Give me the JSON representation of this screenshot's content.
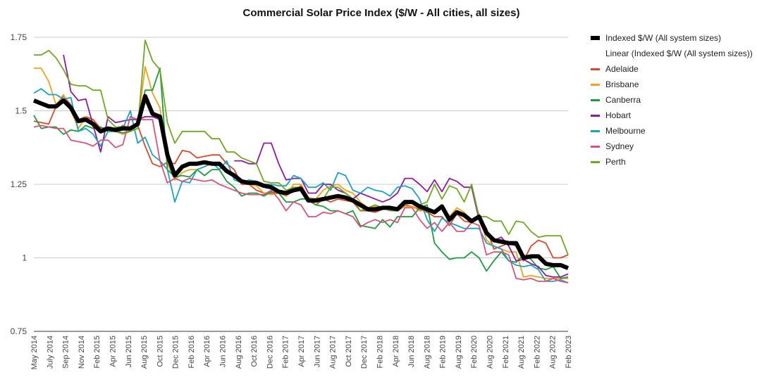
{
  "chart_data": {
    "type": "line",
    "title": "Commercial Solar Price Index ($/W - All cities, all sizes)",
    "xlabel": "",
    "ylabel": "",
    "ylim": [
      0.75,
      1.75
    ],
    "yticks": [
      "0.75",
      "1",
      "1.25",
      "1.5",
      "1.75"
    ],
    "yticks_values": [
      0.75,
      1.0,
      1.25,
      1.5,
      1.75
    ],
    "grid": true,
    "legend_position": "right",
    "x_tick_labels": [
      "May 2014",
      "July 2014",
      "Sep 2014",
      "Nov 2014",
      "Feb 2015",
      "Apr 2015",
      "Jun 2015",
      "Aug 2015",
      "Oct 2015",
      "Dec 2015",
      "Feb 2016",
      "Apr 2016",
      "Jun 2016",
      "Aug 2016",
      "Oct 2016",
      "Dec 2016",
      "Feb 2017",
      "Apr 2017",
      "Jun 2017",
      "Aug 2017",
      "Oct 2017",
      "Dec 2017",
      "Feb 2018",
      "Apr 2018",
      "Jun 2018",
      "Aug 2018",
      "Feb 2019",
      "Aug 2019",
      "Feb 2020",
      "Aug 2020",
      "Feb 2021",
      "Aug 2021",
      "Feb 2022",
      "Aug 2022",
      "Feb 2023"
    ],
    "trendline_label": "Linear (Indexed $/W (All system sizes))",
    "series": [
      {
        "name": "Indexed $/W (All system sizes)",
        "color": "#000000",
        "values": [
          1.535,
          1.525,
          1.515,
          1.515,
          1.535,
          1.51,
          1.465,
          1.47,
          1.455,
          1.43,
          1.44,
          1.435,
          1.44,
          1.44,
          1.455,
          1.55,
          1.49,
          1.48,
          1.35,
          1.28,
          1.31,
          1.32,
          1.32,
          1.325,
          1.32,
          1.32,
          1.295,
          1.28,
          1.26,
          1.255,
          1.255,
          1.245,
          1.24,
          1.225,
          1.22,
          1.23,
          1.235,
          1.195,
          1.195,
          1.2,
          1.205,
          1.21,
          1.205,
          1.195,
          1.18,
          1.165,
          1.165,
          1.17,
          1.17,
          1.165,
          1.19,
          1.19,
          1.175,
          1.165,
          1.155,
          1.175,
          1.13,
          1.155,
          1.145,
          1.125,
          1.14,
          1.085,
          1.06,
          1.055,
          1.05,
          1.05,
          1.0,
          1.005,
          1.005,
          0.98,
          0.975,
          0.975,
          0.965
        ]
      },
      {
        "name": "Adelaide",
        "color": "#d9482b",
        "values": [
          1.465,
          1.46,
          1.455,
          1.515,
          1.55,
          1.52,
          1.47,
          1.48,
          1.47,
          1.44,
          1.445,
          1.435,
          1.45,
          1.44,
          1.45,
          1.38,
          1.32,
          1.31,
          1.325,
          1.32,
          1.365,
          1.36,
          1.34,
          1.345,
          1.35,
          1.35,
          1.32,
          1.3,
          1.25,
          1.25,
          1.23,
          1.22,
          1.22,
          1.22,
          1.21,
          1.23,
          1.245,
          1.195,
          1.18,
          1.2,
          1.19,
          1.2,
          1.195,
          1.19,
          1.16,
          1.16,
          1.155,
          1.165,
          1.175,
          1.16,
          1.18,
          1.175,
          1.165,
          1.155,
          1.14,
          1.14,
          1.11,
          1.15,
          1.125,
          1.12,
          1.14,
          1.1,
          1.03,
          1.04,
          1.05,
          1.04,
          0.99,
          1.04,
          1.06,
          1.05,
          1.0,
          1.0,
          1.01
        ]
      },
      {
        "name": "Brisbane",
        "color": "#f2a21b",
        "values": [
          1.645,
          1.645,
          1.6,
          1.52,
          1.555,
          1.5,
          1.44,
          1.48,
          1.445,
          1.44,
          1.44,
          1.43,
          1.42,
          1.43,
          1.45,
          1.65,
          1.56,
          1.51,
          1.32,
          1.265,
          1.29,
          1.3,
          1.3,
          1.31,
          1.32,
          1.32,
          1.3,
          1.28,
          1.255,
          1.25,
          1.245,
          1.22,
          1.215,
          1.22,
          1.21,
          1.25,
          1.25,
          1.205,
          1.2,
          1.23,
          1.245,
          1.25,
          1.23,
          1.22,
          1.19,
          1.17,
          1.175,
          1.17,
          1.165,
          1.16,
          1.175,
          1.175,
          1.16,
          1.16,
          1.15,
          1.18,
          1.14,
          1.17,
          1.155,
          1.12,
          1.15,
          1.06,
          1.04,
          1.03,
          1.02,
          1.02,
          0.935,
          0.94,
          0.935,
          0.93,
          0.93,
          0.93,
          0.93
        ]
      },
      {
        "name": "Canberra",
        "color": "#1d9b3d",
        "values": [
          1.485,
          1.44,
          1.445,
          1.445,
          1.42,
          1.435,
          1.43,
          1.45,
          1.44,
          1.445,
          1.43,
          1.43,
          1.425,
          1.43,
          1.44,
          1.57,
          1.57,
          1.645,
          1.3,
          1.275,
          1.28,
          1.275,
          1.3,
          1.28,
          1.3,
          1.3,
          1.26,
          1.24,
          1.21,
          1.22,
          1.22,
          1.21,
          1.225,
          1.22,
          1.19,
          1.19,
          1.2,
          1.2,
          1.18,
          1.175,
          1.16,
          1.16,
          1.15,
          1.16,
          1.11,
          1.105,
          1.1,
          1.13,
          1.105,
          1.14,
          1.14,
          1.14,
          1.17,
          1.18,
          1.05,
          1.02,
          0.995,
          1.0,
          1.0,
          1.02,
          1.0,
          0.955,
          0.99,
          1.02,
          0.99,
          0.985,
          1.01,
          0.995,
          0.965,
          0.96,
          0.97,
          0.93,
          0.935
        ]
      },
      {
        "name": "Hobart",
        "color": "#8e1a9e",
        "values": [
          null,
          null,
          null,
          null,
          1.69,
          1.565,
          1.535,
          1.54,
          1.45,
          1.36,
          1.48,
          1.46,
          1.465,
          1.47,
          1.47,
          1.48,
          1.48,
          1.47,
          1.375,
          null,
          null,
          null,
          null,
          null,
          null,
          null,
          null,
          1.33,
          1.33,
          1.32,
          1.32,
          1.39,
          1.39,
          1.32,
          1.265,
          1.27,
          1.27,
          1.22,
          1.22,
          1.25,
          1.25,
          1.23,
          1.22,
          1.2,
          1.22,
          1.21,
          1.2,
          1.19,
          1.2,
          1.22,
          1.27,
          1.27,
          1.25,
          1.225,
          1.265,
          1.225,
          1.27,
          1.26,
          1.24,
          1.24,
          1.13,
          1.09,
          1.06,
          1.07,
          1.04,
          0.99,
          0.995,
          0.98,
          0.97,
          0.94,
          0.935,
          0.935,
          0.945
        ]
      },
      {
        "name": "Melbourne",
        "color": "#1aa3c1",
        "values": [
          1.56,
          1.575,
          1.555,
          1.555,
          1.54,
          1.545,
          1.43,
          1.44,
          1.42,
          1.38,
          1.43,
          1.44,
          1.44,
          1.5,
          1.39,
          1.41,
          1.35,
          1.33,
          1.3,
          1.19,
          1.26,
          1.255,
          1.3,
          1.31,
          1.325,
          1.3,
          1.33,
          1.265,
          1.255,
          1.265,
          1.26,
          1.25,
          1.25,
          1.245,
          1.245,
          1.28,
          1.27,
          1.24,
          1.24,
          1.255,
          1.23,
          1.29,
          1.28,
          1.23,
          1.22,
          1.24,
          1.23,
          1.225,
          1.21,
          1.24,
          1.245,
          1.235,
          1.2,
          1.13,
          1.09,
          1.135,
          1.12,
          1.11,
          1.1,
          1.1,
          1.1,
          1.05,
          1.04,
          1.03,
          0.99,
          0.975,
          0.97,
          0.975,
          0.96,
          0.92,
          0.92,
          0.925,
          0.915
        ]
      },
      {
        "name": "Sydney",
        "color": "#d9527a",
        "values": [
          1.445,
          1.45,
          1.445,
          1.44,
          1.44,
          1.4,
          1.395,
          1.39,
          1.38,
          1.4,
          1.4,
          1.375,
          1.385,
          1.48,
          1.47,
          1.47,
          1.47,
          1.33,
          1.255,
          1.27,
          1.26,
          1.27,
          1.265,
          1.26,
          1.265,
          1.25,
          1.24,
          1.23,
          1.22,
          1.215,
          1.215,
          1.215,
          1.23,
          1.2,
          1.16,
          1.19,
          1.18,
          1.14,
          1.14,
          1.155,
          1.15,
          1.16,
          1.15,
          1.14,
          1.105,
          1.12,
          1.13,
          1.12,
          1.13,
          1.12,
          1.17,
          1.17,
          1.13,
          1.1,
          1.12,
          1.09,
          1.12,
          1.09,
          1.09,
          1.12,
          1.11,
          1.01,
          1.02,
          1.02,
          1.01,
          0.93,
          0.925,
          0.93,
          0.92,
          0.92,
          0.93,
          0.92,
          0.915
        ]
      },
      {
        "name": "Perth",
        "color": "#6fa822",
        "values": [
          1.69,
          1.69,
          1.705,
          1.68,
          1.64,
          1.59,
          1.585,
          1.585,
          1.57,
          1.57,
          1.47,
          1.445,
          1.445,
          1.43,
          1.44,
          1.74,
          1.67,
          1.64,
          1.46,
          1.39,
          1.43,
          1.43,
          1.43,
          1.43,
          1.405,
          1.405,
          1.36,
          1.36,
          1.34,
          1.33,
          1.32,
          1.26,
          1.255,
          1.255,
          1.23,
          1.24,
          1.24,
          1.2,
          1.19,
          1.2,
          1.24,
          1.24,
          1.22,
          1.2,
          1.16,
          1.17,
          1.18,
          1.17,
          1.16,
          1.16,
          1.18,
          1.19,
          1.18,
          1.19,
          1.25,
          1.2,
          1.245,
          1.235,
          1.19,
          1.25,
          1.14,
          1.14,
          1.125,
          1.125,
          1.08,
          1.125,
          1.12,
          1.09,
          1.07,
          1.075,
          1.075,
          1.075,
          1.01
        ]
      }
    ]
  }
}
